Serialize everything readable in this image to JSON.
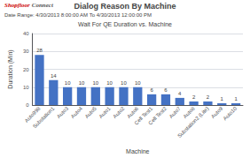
{
  "chart_data": {
    "type": "bar",
    "title": "Dialog Reason By Machine",
    "subtitle": "Date Range: 4/30/2013 8:00:00 AM To 4/30/2013 12:00:00 PM",
    "annotations": [
      {
        "text": "Shopfloor",
        "color": "#CC0000"
      },
      {
        "text": "Connect",
        "color": "#555555"
      },
      {
        "text": "Wait For QE Duration vs. Machine"
      }
    ],
    "xlabel": "Machine",
    "ylabel": "Duration (Min)",
    "categories": [
      "Auto998",
      "Substation1",
      "Auto3",
      "Auto4",
      "Auto5",
      "Auto1",
      "Auto2",
      "Auto6",
      "Cell Test1",
      "Cell Test2",
      "Auto7",
      "Auto8",
      "Substation2 (Lite)",
      "Auto9",
      "Auto10"
    ],
    "values": [
      28,
      14,
      10,
      10,
      10,
      10,
      10,
      10,
      6,
      6,
      4,
      2,
      2,
      1,
      1
    ],
    "color": "#4472C4",
    "ylim": [
      0,
      40
    ],
    "yticks": [
      0,
      10,
      20,
      30,
      40
    ],
    "grid": true,
    "data_labels": true
  }
}
